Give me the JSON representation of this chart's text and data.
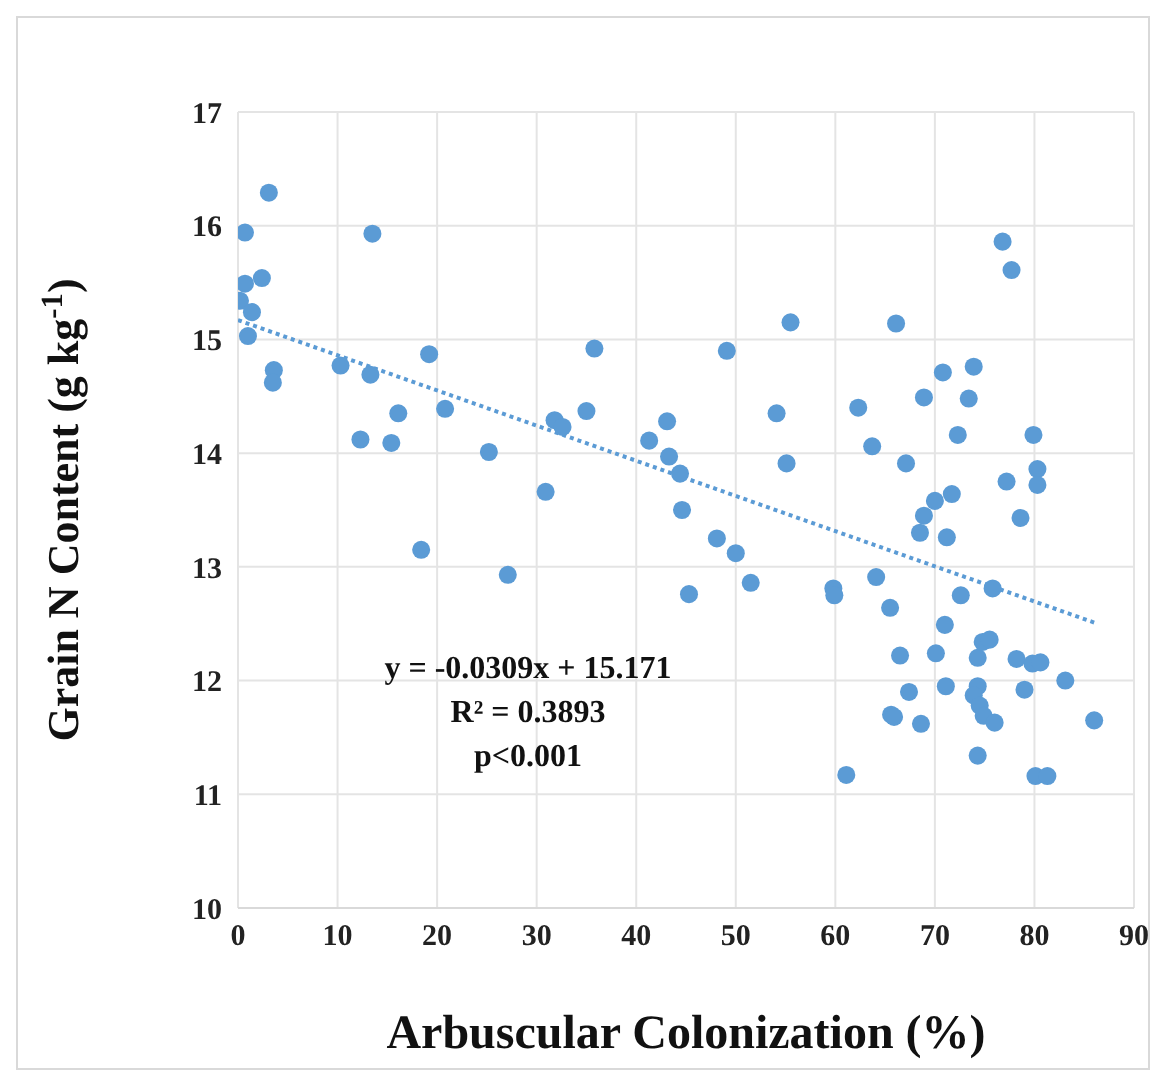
{
  "chart_data": {
    "type": "scatter",
    "xlabel": "Arbuscular Colonization (%)",
    "ylabel": "Grain N Content (g kg$^{-1}$)",
    "xlim": [
      0,
      90
    ],
    "xticks": [
      0,
      10,
      20,
      30,
      40,
      50,
      60,
      70,
      80,
      90
    ],
    "ylim": [
      10,
      17
    ],
    "yticks": [
      10,
      11,
      12,
      13,
      14,
      15,
      16,
      17
    ],
    "grid": true,
    "marker": "circle",
    "annotations": [
      "y = -0.0309x + 15.171",
      "R² = 0.3893",
      "p<0.001"
    ],
    "series": [
      {
        "color": "#5b9bd5",
        "x": [
          0.7,
          3.1,
          13.5,
          0.7,
          2.4,
          0.2,
          1.4,
          1.0,
          3.6,
          3.5,
          10.3,
          13.3,
          19.2,
          35.8,
          12.3,
          15.4,
          16.1,
          20.8,
          25.2,
          31.8,
          32.6,
          35.0,
          30.9,
          18.4,
          27.1,
          41.3,
          43.1,
          43.3,
          44.4,
          44.6,
          45.3,
          48.1,
          49.1,
          50.0,
          51.5,
          54.1,
          55.1,
          55.5,
          59.8,
          59.9,
          61.1,
          62.3,
          63.7,
          64.1,
          65.5,
          65.6,
          65.9,
          66.1,
          66.5,
          67.1,
          67.4,
          68.5,
          68.6,
          68.9,
          68.9,
          70.0,
          70.1,
          70.8,
          71.0,
          71.1,
          71.2,
          71.7,
          72.3,
          72.6,
          73.4,
          73.9,
          74.3,
          74.3,
          73.9,
          74.5,
          74.9,
          74.3,
          74.8,
          75.5,
          75.8,
          76.0,
          76.8,
          77.7,
          77.2,
          78.2,
          78.6,
          79.0,
          79.9,
          79.8,
          80.6,
          80.3,
          80.3,
          80.1,
          81.3,
          83.1,
          86.0
        ],
        "values": [
          15.94,
          16.29,
          15.93,
          15.49,
          15.54,
          15.34,
          15.24,
          15.03,
          14.73,
          14.62,
          14.77,
          14.69,
          14.87,
          14.92,
          14.12,
          14.09,
          14.35,
          14.39,
          14.01,
          14.29,
          14.23,
          14.37,
          13.66,
          13.15,
          12.93,
          14.11,
          14.28,
          13.97,
          13.82,
          13.5,
          12.76,
          13.25,
          14.9,
          13.12,
          12.86,
          14.35,
          13.91,
          15.15,
          12.81,
          12.75,
          11.17,
          14.4,
          14.06,
          12.91,
          12.64,
          11.7,
          11.68,
          15.14,
          12.22,
          13.91,
          11.9,
          13.3,
          11.62,
          13.45,
          14.49,
          13.58,
          12.24,
          14.71,
          12.49,
          11.95,
          13.26,
          13.64,
          14.16,
          12.75,
          14.48,
          14.76,
          12.2,
          11.95,
          11.87,
          11.78,
          11.69,
          11.34,
          12.34,
          12.36,
          12.81,
          11.63,
          15.86,
          15.61,
          13.75,
          12.19,
          13.43,
          11.92,
          14.16,
          12.15,
          12.16,
          13.86,
          13.72,
          11.16,
          11.16,
          12.0,
          11.65
        ]
      },
      {
        "type": "line",
        "color": "#5b9bd5",
        "line_style": "dotted",
        "marker": "none",
        "x": [
          0,
          86
        ],
        "values": [
          15.17,
          12.51
        ]
      }
    ]
  }
}
